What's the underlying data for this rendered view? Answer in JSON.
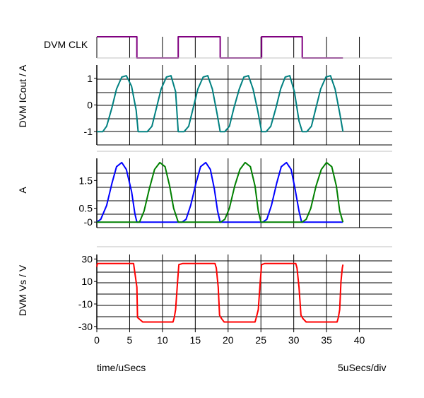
{
  "chart_data": [
    {
      "type": "line",
      "ylabel": "DVM CLK",
      "x_ticks": [],
      "y_ticks": [],
      "ylim": [
        0,
        1
      ],
      "series": [
        {
          "color": "#800080",
          "x": [
            0,
            6.1,
            6.1,
            12.4,
            12.4,
            18.8,
            18.8,
            25.1,
            25.1,
            31.3,
            31.3,
            37.5
          ],
          "y": [
            1,
            1,
            0,
            0,
            1,
            1,
            0,
            0,
            1,
            1,
            0,
            0
          ]
        }
      ]
    },
    {
      "type": "line",
      "ylabel": "DVM ICout / A",
      "ylim": [
        -1.5,
        1.5
      ],
      "y_ticks": [
        1,
        0,
        -1
      ],
      "y_tick_labels": [
        "1",
        "0",
        "-1"
      ],
      "series": [
        {
          "color": "#008080",
          "x": [
            0,
            0.9,
            1.5,
            2.3,
            3.0,
            3.8,
            4.5,
            5.3,
            6.0,
            6.3,
            7.0,
            7.7,
            8.4,
            9.1,
            9.8,
            10.6,
            11.3,
            12.0,
            12.4,
            13.3,
            14.0,
            14.7,
            15.4,
            16.2,
            16.9,
            17.6,
            18.3,
            18.8,
            19.5,
            20.2,
            20.9,
            21.7,
            22.4,
            23.1,
            23.8,
            24.5,
            25.1,
            25.8,
            26.5,
            27.3,
            28.0,
            28.7,
            29.4,
            30.1,
            30.8,
            31.3,
            32.0,
            32.7,
            33.4,
            34.1,
            34.9,
            35.6,
            36.3,
            37.0,
            37.5
          ],
          "y": [
            -1,
            -1,
            -0.8,
            -0.1,
            0.6,
            1.05,
            1.1,
            0.7,
            -0.2,
            -1,
            -1,
            -1,
            -0.8,
            -0.1,
            0.6,
            1.05,
            1.1,
            0.5,
            -1,
            -1,
            -0.8,
            -0.1,
            0.6,
            1.05,
            1.1,
            0.6,
            -0.3,
            -1,
            -1,
            -0.8,
            -0.1,
            0.6,
            1.05,
            1.1,
            0.6,
            -0.2,
            -1,
            -1,
            -0.8,
            -0.1,
            0.6,
            1.05,
            1.1,
            0.5,
            -0.6,
            -1,
            -1,
            -0.8,
            -0.1,
            0.6,
            1.05,
            1.1,
            0.6,
            -0.3,
            -1
          ]
        }
      ]
    },
    {
      "type": "line",
      "ylabel": "A",
      "ylim": [
        -0.2,
        2.3
      ],
      "y_ticks": [
        1.5,
        0.5,
        0
      ],
      "y_tick_labels": [
        "1.5",
        "0.5",
        "-0"
      ],
      "series": [
        {
          "color": "#0000ff",
          "x": [
            0,
            0.6,
            1.5,
            2.3,
            3.0,
            3.8,
            4.5,
            5.3,
            5.8,
            6.1,
            13.0,
            13.6,
            14.3,
            15.1,
            15.8,
            16.6,
            17.3,
            17.9,
            18.4,
            18.8,
            25.3,
            25.9,
            26.6,
            27.4,
            28.1,
            28.9,
            29.6,
            30.2,
            30.8,
            31.2,
            37.5
          ],
          "y": [
            0,
            0.1,
            0.6,
            1.4,
            2.0,
            2.15,
            1.9,
            1.1,
            0.3,
            0,
            0,
            0.1,
            0.6,
            1.4,
            2.0,
            2.15,
            1.9,
            1.2,
            0.4,
            0,
            0,
            0.1,
            0.6,
            1.4,
            2.0,
            2.15,
            1.9,
            1.2,
            0.4,
            0,
            0
          ]
        },
        {
          "color": "#008000",
          "x": [
            0,
            6.5,
            7.2,
            8.0,
            8.8,
            9.6,
            10.4,
            11.1,
            11.7,
            12.4,
            18.9,
            19.5,
            20.2,
            21.0,
            21.8,
            22.6,
            23.4,
            24.1,
            24.6,
            25.0,
            31.3,
            31.9,
            32.6,
            33.4,
            34.2,
            35.0,
            35.8,
            36.5,
            37.0,
            37.5
          ],
          "y": [
            0,
            0,
            0.4,
            1.2,
            1.9,
            2.15,
            2.0,
            1.3,
            0.5,
            0,
            0,
            0.1,
            0.5,
            1.3,
            1.9,
            2.15,
            2.0,
            1.3,
            0.4,
            0,
            0,
            0.1,
            0.5,
            1.3,
            1.9,
            2.15,
            2.0,
            1.3,
            0.4,
            0
          ]
        }
      ]
    },
    {
      "type": "line",
      "ylabel": "DVM Vs / V",
      "ylim": [
        -32,
        34
      ],
      "y_ticks": [
        30,
        10,
        -10,
        -30
      ],
      "y_tick_labels": [
        "30",
        "10",
        "-10",
        "-30"
      ],
      "series": [
        {
          "color": "#ff0000",
          "x": [
            0,
            0.1,
            5.6,
            5.7,
            6.1,
            6.2,
            7.0,
            11.6,
            11.8,
            12.0,
            12.3,
            12.5,
            13.1,
            18.0,
            18.2,
            18.5,
            18.7,
            19.0,
            19.4,
            24.1,
            24.3,
            24.6,
            24.9,
            25.1,
            25.6,
            30.3,
            30.5,
            30.8,
            31.1,
            31.4,
            31.9,
            36.6,
            36.8,
            37.0,
            37.2,
            37.4,
            37.5
          ],
          "y": [
            23,
            26,
            26,
            22,
            5,
            -22,
            -26,
            -26,
            -22,
            -15,
            10,
            25,
            26,
            26,
            22,
            5,
            -20,
            -23,
            -26,
            -26,
            -22,
            -15,
            10,
            25,
            26,
            26,
            22,
            5,
            -20,
            -23,
            -26,
            -26,
            -22,
            -15,
            10,
            22,
            25
          ]
        }
      ]
    }
  ],
  "x_axis": {
    "ticks": [
      0,
      5,
      10,
      15,
      20,
      25,
      30,
      35,
      40
    ],
    "labels": [
      "0",
      "5",
      "10",
      "15",
      "20",
      "25",
      "30",
      "35",
      "40"
    ],
    "xlim": [
      0,
      45
    ],
    "xlabel": "time/uSecs",
    "scale_note": "5uSecs/div"
  },
  "colors": {
    "clk": "#800080",
    "icout": "#008080",
    "blue": "#0000ff",
    "green": "#008000",
    "vs": "#ff0000",
    "grid": "#000000",
    "separator": "#c0c0c0"
  }
}
